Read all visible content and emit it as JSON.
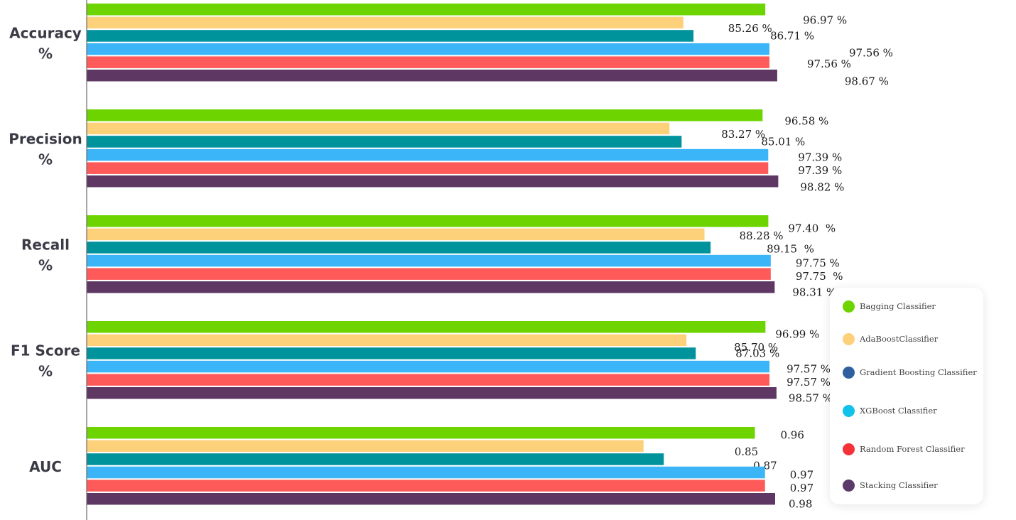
{
  "chart_data": {
    "type": "bar",
    "orientation": "horizontal",
    "categories": [
      "Accuracy\n%",
      "Precision\n%",
      "Recall\n%",
      "F1 Score\n%",
      "AUC"
    ],
    "series": [
      {
        "name": "Bagging Classifier",
        "color": "#6dd400",
        "values": [
          96.97,
          96.58,
          97.4,
          96.99,
          0.96
        ],
        "labels": [
          "96.97 %",
          "96.58 %",
          "97.40  %",
          "96.99 %",
          "0.96"
        ]
      },
      {
        "name": "AdaBoostClassifier",
        "color": "#fdd07a",
        "values": [
          85.26,
          83.27,
          88.28,
          85.7,
          0.85
        ],
        "labels": [
          "85.26 %",
          "83.27 %",
          "88.28 %",
          "85.70 %",
          "0.85"
        ]
      },
      {
        "name": "Gradient Boosting Classifier",
        "color": "#00939c",
        "legend_color": "#2f5f9e",
        "values": [
          86.71,
          85.01,
          89.15,
          87.03,
          0.87
        ],
        "labels": [
          "86.71 %",
          "85.01 %",
          "89.15  %",
          "87.03 %",
          "0.87"
        ]
      },
      {
        "name": "XGBoost Classifier",
        "color": "#3bb5f8",
        "legend_color": "#12c2e8",
        "values": [
          97.56,
          97.39,
          97.75,
          97.57,
          0.97
        ],
        "labels": [
          "97.56 %",
          "97.39 %",
          "97.75 %",
          "97.57 %",
          "0.97"
        ]
      },
      {
        "name": "Random Forest Classifier",
        "color": "#ff5a5a",
        "legend_color": "#f53238",
        "values": [
          97.56,
          97.39,
          97.75,
          97.57,
          0.97
        ],
        "labels": [
          "97.56 %",
          "97.39 %",
          "97.75  %",
          "97.57 %",
          "0.97"
        ]
      },
      {
        "name": "Stacking Classifier",
        "color": "#5e3763",
        "legend_color": "#5a3a6a",
        "values": [
          98.67,
          98.82,
          98.31,
          98.57,
          0.98
        ],
        "labels": [
          "98.67 %",
          "98.82 %",
          "98.31 %",
          "98.57 %",
          "0.98"
        ]
      }
    ],
    "legend_position": "bottom-right",
    "grid": false
  }
}
